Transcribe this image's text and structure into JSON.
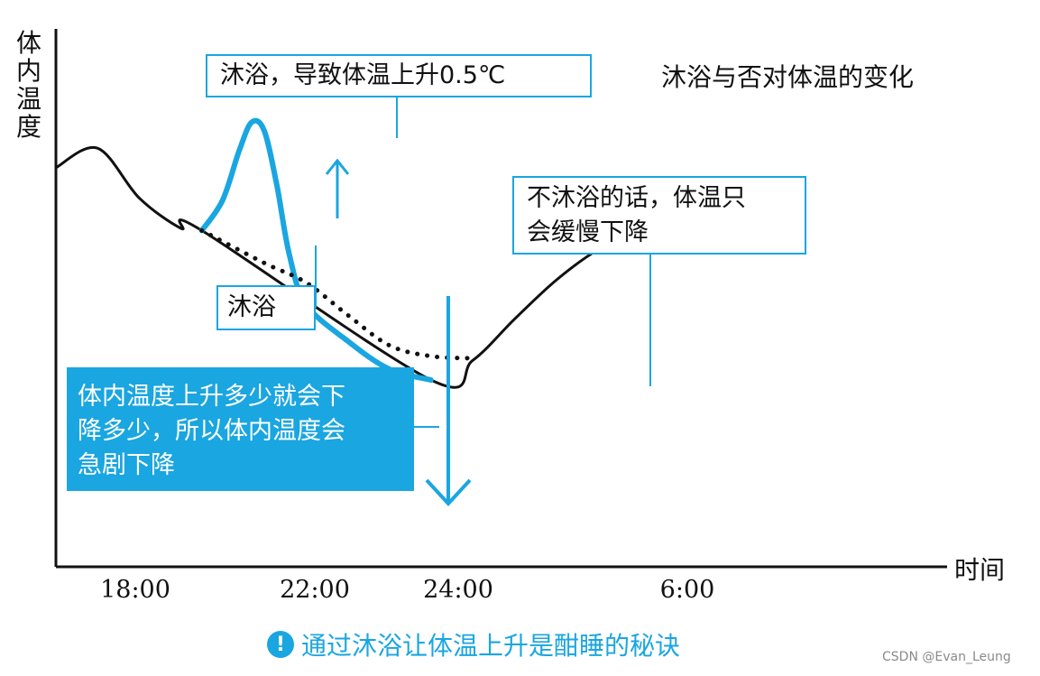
{
  "chart_data": {
    "type": "line",
    "title": "沐浴与否对体温的变化",
    "ylabel": "体内温度",
    "xlabel": "时间",
    "x_ticks": [
      "18:00",
      "22:00",
      "24:00",
      "6:00"
    ],
    "series": [
      {
        "style": "solid",
        "color": "#111111",
        "points": [
          [
            0,
            0.58
          ],
          [
            1,
            0.67
          ],
          [
            2,
            0.44
          ],
          [
            3,
            0.3
          ],
          [
            3.5,
            0.29
          ],
          [
            9,
            -0.4
          ],
          [
            10,
            -0.31
          ],
          [
            11,
            -0.12
          ],
          [
            12,
            0.06
          ],
          [
            13,
            0.2
          ],
          [
            14,
            0.28
          ],
          [
            15,
            0.32
          ]
        ]
      },
      {
        "style": "solid",
        "color": "#1aa6e0",
        "points": [
          [
            3.5,
            0.29
          ],
          [
            4,
            0.43
          ],
          [
            4.4,
            0.66
          ],
          [
            4.7,
            0.79
          ],
          [
            5.0,
            0.75
          ],
          [
            5.3,
            0.5
          ],
          [
            5.6,
            0.18
          ],
          [
            6,
            -0.05
          ],
          [
            7,
            -0.22
          ],
          [
            8,
            -0.35
          ],
          [
            9,
            -0.4
          ]
        ]
      },
      {
        "style": "dotted",
        "color": "#111111",
        "points": [
          [
            3.5,
            0.29
          ],
          [
            5,
            0.14
          ],
          [
            6,
            0.05
          ],
          [
            7,
            -0.1
          ],
          [
            8,
            -0.24
          ],
          [
            9,
            -0.29
          ],
          [
            10,
            -0.3
          ]
        ]
      }
    ],
    "annotations": {
      "peak": "沐浴，导致体温上升0.5℃",
      "bath": "沐浴",
      "slow_lines": [
        "不沐浴的话，体温只",
        "会缓慢下降"
      ],
      "drop_lines": [
        "体内温度上升多少就会下",
        "降多少，所以体内温度会",
        "急剧下降"
      ]
    },
    "colors": {
      "accent": "#1aa6e0",
      "ink": "#111111"
    }
  },
  "caption": {
    "icon": "!",
    "text": "通过沐浴让体温上升是酣睡的秘诀"
  },
  "watermark": "CSDN @Evan_Leung"
}
